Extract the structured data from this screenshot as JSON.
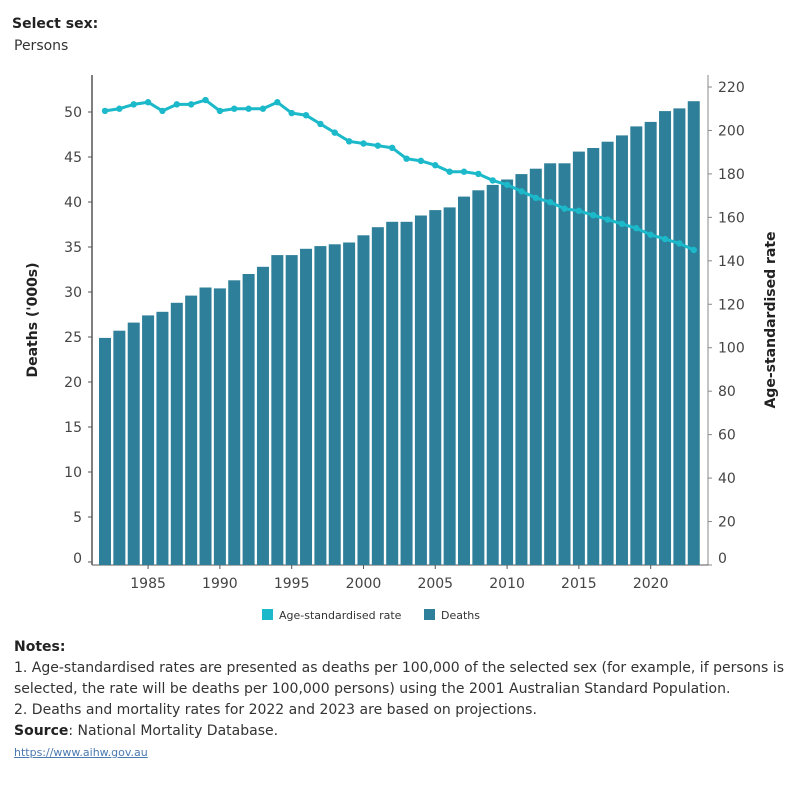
{
  "filter": {
    "label": "Select sex:",
    "value": "Persons"
  },
  "chart_data": {
    "type": "bar+line",
    "categories": [
      1982,
      1983,
      1984,
      1985,
      1986,
      1987,
      1988,
      1989,
      1990,
      1991,
      1992,
      1993,
      1994,
      1995,
      1996,
      1997,
      1998,
      1999,
      2000,
      2001,
      2002,
      2003,
      2004,
      2005,
      2006,
      2007,
      2008,
      2009,
      2010,
      2011,
      2012,
      2013,
      2014,
      2015,
      2016,
      2017,
      2018,
      2019,
      2020,
      2021,
      2022,
      2023
    ],
    "series": [
      {
        "name": "Deaths",
        "type": "bar",
        "axis": "left",
        "color": "#2e7f99",
        "values": [
          24.9,
          25.7,
          26.6,
          27.4,
          27.8,
          28.8,
          29.6,
          30.5,
          30.4,
          31.3,
          32.0,
          32.8,
          34.1,
          34.1,
          34.8,
          35.1,
          35.3,
          35.5,
          36.3,
          37.2,
          37.8,
          37.8,
          38.5,
          39.1,
          39.4,
          40.6,
          41.3,
          41.9,
          42.5,
          43.1,
          43.7,
          44.3,
          44.3,
          45.6,
          46.0,
          46.7,
          47.4,
          48.4,
          48.9,
          50.1,
          50.4,
          51.2
        ]
      },
      {
        "name": "Age-standardised rate",
        "type": "line",
        "axis": "right",
        "color": "#1bb9c9",
        "values": [
          209,
          210,
          212,
          213,
          209,
          212,
          212,
          214,
          209,
          210,
          210,
          210,
          213,
          208,
          207,
          203,
          199,
          195,
          194,
          193,
          192,
          187,
          186,
          184,
          181,
          181,
          180,
          177,
          175,
          172,
          169,
          167,
          164,
          163,
          161,
          159,
          157,
          155,
          152,
          150,
          148,
          145
        ]
      }
    ],
    "ylabel_left": "Deaths ('000s)",
    "ylabel_right": "Age-standardised rate",
    "ylim_left": [
      0,
      54.5
    ],
    "ylim_right": [
      0,
      220
    ],
    "yticks_left": [
      0,
      5,
      10,
      15,
      20,
      25,
      30,
      35,
      40,
      45,
      50
    ],
    "yticks_right": [
      0,
      20,
      40,
      60,
      80,
      100,
      120,
      140,
      160,
      180,
      200,
      220
    ],
    "xticks": [
      1985,
      1990,
      1995,
      2000,
      2005,
      2010,
      2015,
      2020
    ],
    "grid": false,
    "legend_position": "bottom"
  },
  "notes": {
    "heading": "Notes:",
    "items": [
      "1. Age-standardised rates are presented as deaths per 100,000 of the selected sex (for example, if persons is selected, the rate will be deaths per 100,000 persons) using the 2001 Australian Standard Population.",
      "2. Deaths and mortality rates for 2022 and 2023 are based on projections."
    ],
    "source_label": "Source",
    "source_text": ": National Mortality Database.",
    "link": "https://www.aihw.gov.au"
  }
}
